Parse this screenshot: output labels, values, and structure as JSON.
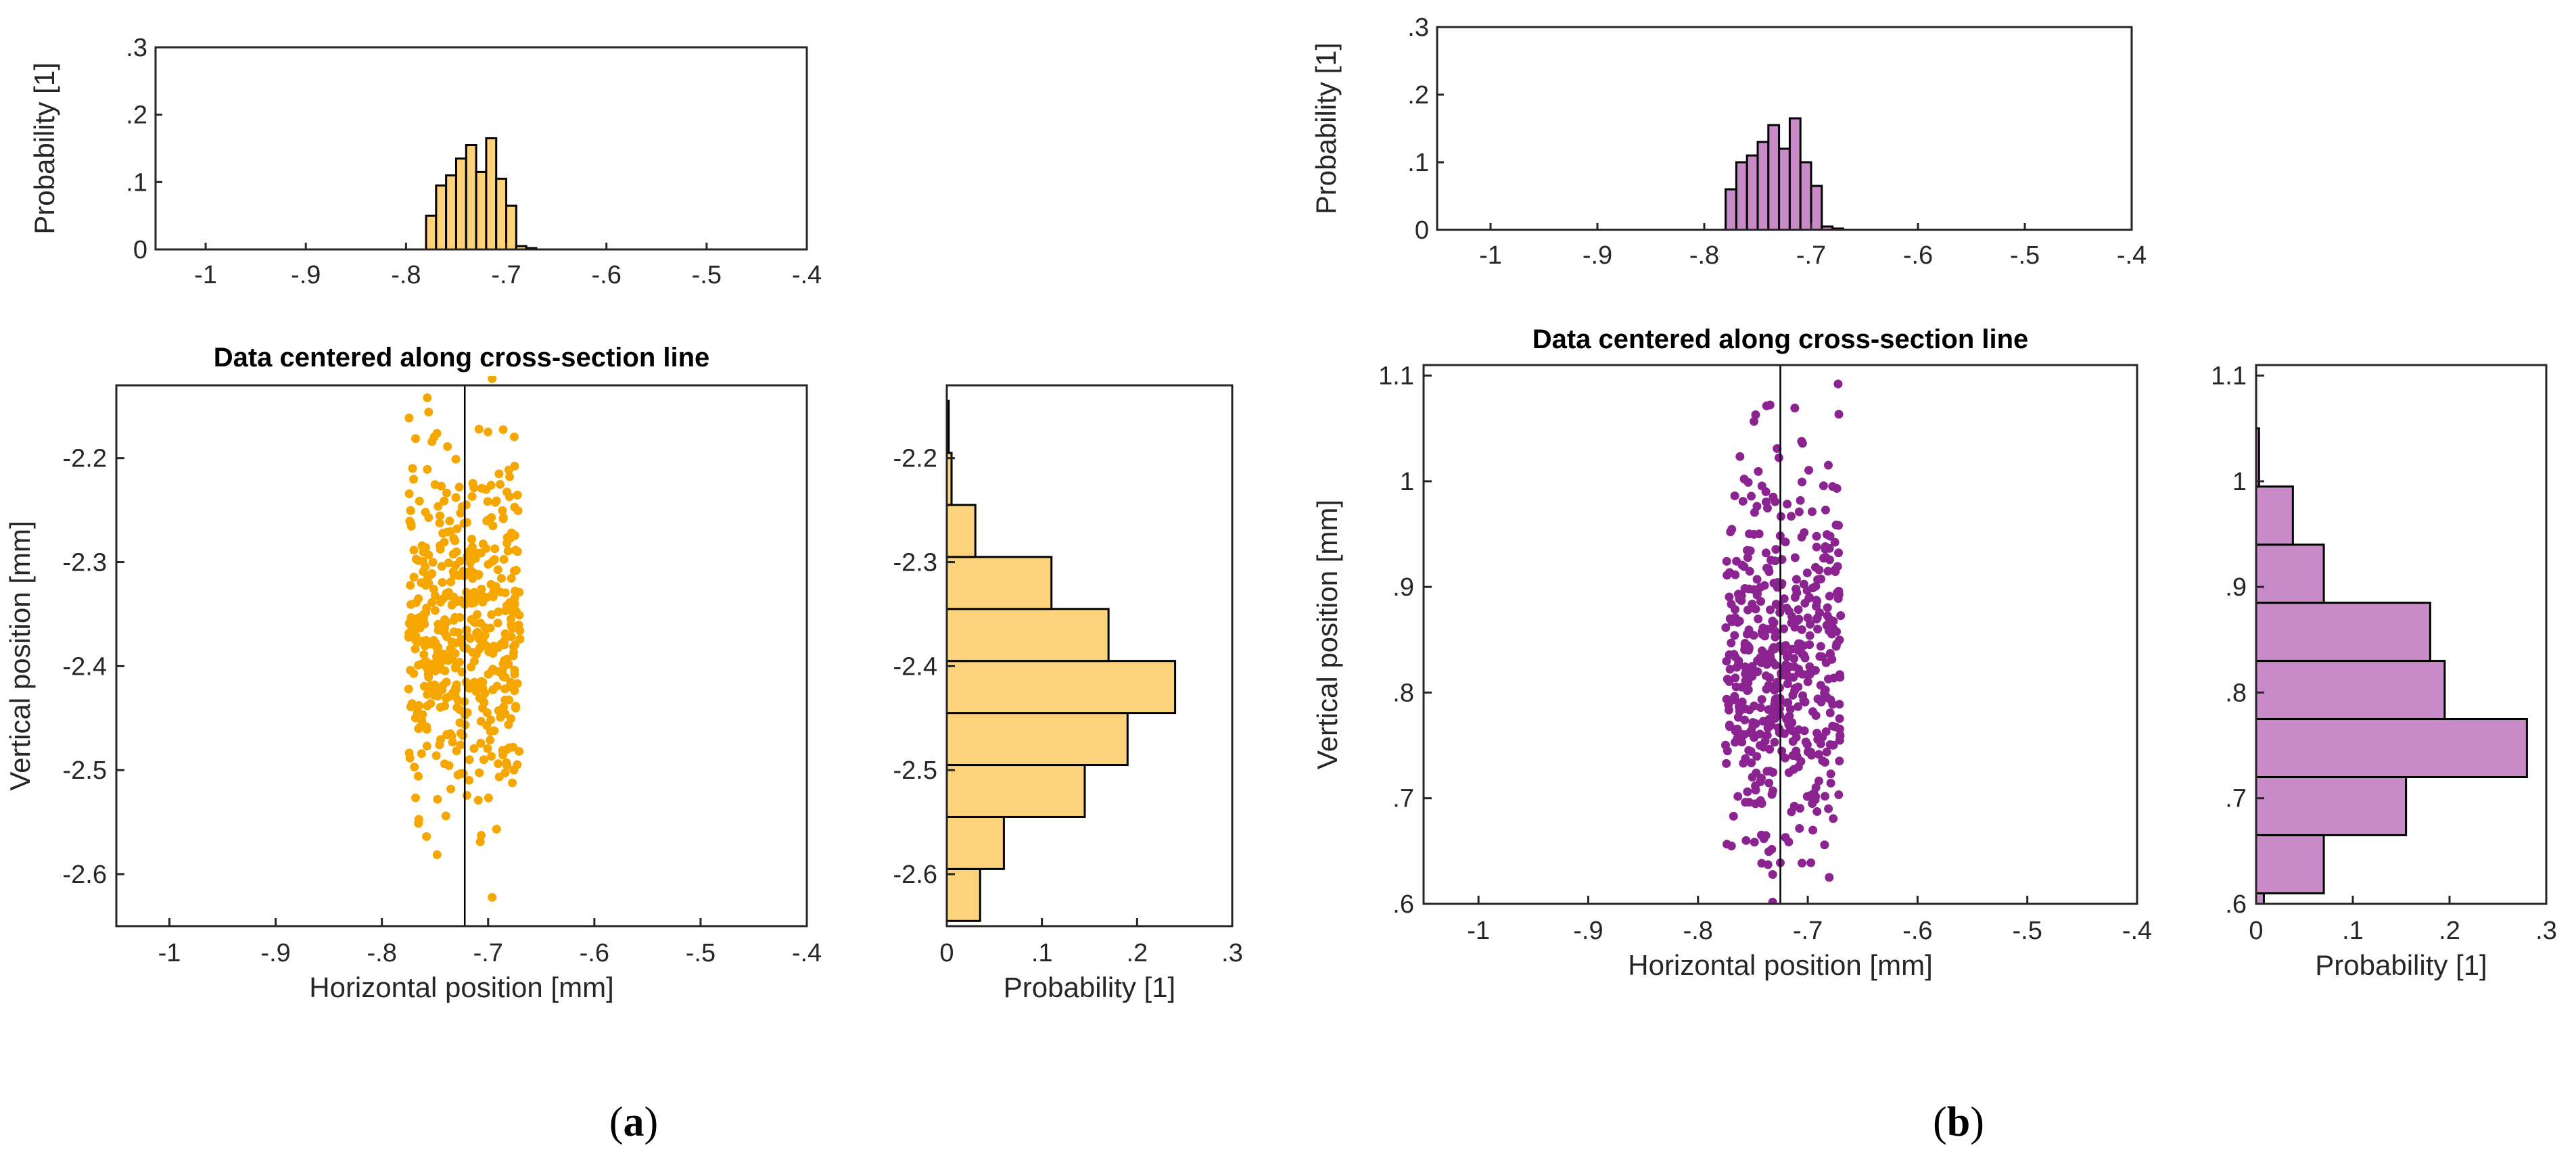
{
  "chart_data": [
    {
      "id": "a",
      "panel_label_parts": [
        "(",
        "a",
        ")"
      ],
      "color": "#F5A700",
      "bar_fill": "#FCD27A",
      "top_histogram": {
        "type": "bar",
        "ylabel": "Probability [1]",
        "xlim": [
          -1.05,
          -0.4
        ],
        "ylim": [
          0,
          0.3
        ],
        "xticks": [
          -1,
          -0.9,
          -0.8,
          -0.7,
          -0.6,
          -0.5,
          -0.4
        ],
        "yticks": [
          0,
          0.1,
          0.2,
          0.3
        ],
        "bin_edges": [
          -0.78,
          -0.77,
          -0.76,
          -0.75,
          -0.74,
          -0.73,
          -0.72,
          -0.71,
          -0.7,
          -0.69,
          -0.68,
          -0.67,
          -0.66
        ],
        "values": [
          0.05,
          0.095,
          0.11,
          0.135,
          0.155,
          0.115,
          0.165,
          0.105,
          0.065,
          0.005,
          0.002,
          0.0
        ]
      },
      "scatter": {
        "type": "scatter",
        "title": "Data centered along cross-section line",
        "xlabel": "Horizontal position [mm]",
        "ylabel": "Vertical position [mm]",
        "xlim": [
          -1.05,
          -0.4
        ],
        "ylim": [
          -2.65,
          -2.13
        ],
        "xticks": [
          -1,
          -0.9,
          -0.8,
          -0.7,
          -0.6,
          -0.5,
          -0.4
        ],
        "yticks": [
          -2.2,
          -2.3,
          -2.4,
          -2.5,
          -2.6
        ],
        "center_line_x": -0.722,
        "n_points": 500,
        "x_range": [
          -0.775,
          -0.67
        ],
        "y_mean": -2.37,
        "y_sd": 0.085
      },
      "side_histogram": {
        "type": "bar",
        "orientation": "horizontal",
        "xlabel": "Probability [1]",
        "xlim": [
          0,
          0.3
        ],
        "ylim": [
          -2.65,
          -2.13
        ],
        "xticks": [
          0,
          0.1,
          0.2,
          0.3
        ],
        "yticks": [
          -2.2,
          -2.3,
          -2.4,
          -2.5,
          -2.6
        ],
        "bin_edges": [
          -2.645,
          -2.595,
          -2.545,
          -2.495,
          -2.445,
          -2.395,
          -2.345,
          -2.295,
          -2.245,
          -2.195,
          -2.145
        ],
        "values": [
          0.035,
          0.06,
          0.145,
          0.19,
          0.24,
          0.17,
          0.11,
          0.03,
          0.005,
          0.002
        ]
      }
    },
    {
      "id": "b",
      "panel_label_parts": [
        "(",
        "b",
        ")"
      ],
      "color": "#8B2391",
      "bar_fill": "#C98AC8",
      "top_histogram": {
        "type": "bar",
        "ylabel": "Probability [1]",
        "xlim": [
          -1.05,
          -0.4
        ],
        "ylim": [
          0,
          0.3
        ],
        "xticks": [
          -1,
          -0.9,
          -0.8,
          -0.7,
          -0.6,
          -0.5,
          -0.4
        ],
        "yticks": [
          0,
          0.1,
          0.2,
          0.3
        ],
        "bin_edges": [
          -0.78,
          -0.77,
          -0.76,
          -0.75,
          -0.74,
          -0.73,
          -0.72,
          -0.71,
          -0.7,
          -0.69,
          -0.68,
          -0.67,
          -0.66
        ],
        "values": [
          0.06,
          0.1,
          0.11,
          0.13,
          0.155,
          0.12,
          0.165,
          0.1,
          0.065,
          0.005,
          0.002,
          0.0
        ]
      },
      "scatter": {
        "type": "scatter",
        "title": "Data centered along cross-section line",
        "xlabel": "Horizontal position [mm]",
        "ylabel": "Vertical position [mm]",
        "xlim": [
          -1.05,
          -0.4
        ],
        "ylim": [
          0.6,
          1.11
        ],
        "xticks": [
          -1,
          -0.9,
          -0.8,
          -0.7,
          -0.6,
          -0.5,
          -0.4
        ],
        "yticks": [
          0.6,
          0.7,
          0.8,
          0.9,
          1,
          1.1
        ],
        "center_line_x": -0.725,
        "n_points": 500,
        "x_range": [
          -0.775,
          -0.67
        ],
        "y_mean": 0.83,
        "y_sd": 0.09
      },
      "side_histogram": {
        "type": "bar",
        "orientation": "horizontal",
        "xlabel": "Probability [1]",
        "xlim": [
          0,
          0.3
        ],
        "ylim": [
          0.6,
          1.11
        ],
        "xticks": [
          0,
          0.1,
          0.2,
          0.3
        ],
        "yticks": [
          0.6,
          0.7,
          0.8,
          0.9,
          1,
          1.1
        ],
        "bin_edges": [
          0.6,
          0.61,
          0.665,
          0.72,
          0.775,
          0.83,
          0.885,
          0.94,
          0.995,
          1.05,
          1.105
        ],
        "values": [
          0.008,
          0.07,
          0.155,
          0.28,
          0.195,
          0.18,
          0.07,
          0.038,
          0.003,
          0.0
        ]
      }
    }
  ]
}
